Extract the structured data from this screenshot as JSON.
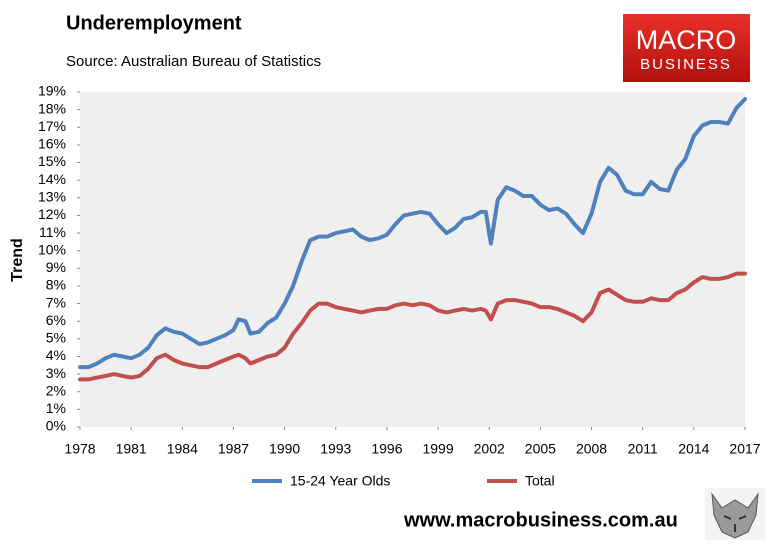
{
  "chart_data": {
    "type": "line",
    "title": "Underemployment",
    "subtitle": "Source: Australian Bureau of Statistics",
    "y_label": "Trend",
    "logo": {
      "top": "MACRO",
      "bottom": "BUSINESS"
    },
    "footer": "www.macrobusiness.com.au",
    "x": [
      1978,
      1978.5,
      1979,
      1979.5,
      1980,
      1980.5,
      1981,
      1981.5,
      1982,
      1982.5,
      1983,
      1983.5,
      1984,
      1984.5,
      1985,
      1985.5,
      1986,
      1986.5,
      1987,
      1987.3,
      1987.7,
      1988,
      1988.5,
      1989,
      1989.5,
      1990,
      1990.5,
      1991,
      1991.5,
      1992,
      1992.5,
      1993,
      1993.5,
      1994,
      1994.5,
      1995,
      1995.5,
      1996,
      1996.5,
      1997,
      1997.5,
      1998,
      1998.5,
      1999,
      1999.5,
      2000,
      2000.5,
      2001,
      2001.5,
      2001.8,
      2002.1,
      2002.5,
      2003,
      2003.5,
      2004,
      2004.5,
      2005,
      2005.5,
      2006,
      2006.5,
      2007,
      2007.5,
      2008,
      2008.5,
      2009,
      2009.5,
      2010,
      2010.5,
      2011,
      2011.5,
      2012,
      2012.5,
      2013,
      2013.5,
      2014,
      2014.5,
      2015,
      2015.5,
      2016,
      2016.5,
      2017
    ],
    "series": [
      {
        "name": "15-24 Year Olds",
        "color": "#4f81bd",
        "values": [
          3.4,
          3.4,
          3.6,
          3.9,
          4.1,
          4.0,
          3.9,
          4.1,
          4.5,
          5.2,
          5.6,
          5.4,
          5.3,
          5.0,
          4.7,
          4.8,
          5.0,
          5.2,
          5.5,
          6.1,
          6.0,
          5.3,
          5.4,
          5.9,
          6.2,
          7.0,
          8.0,
          9.4,
          10.6,
          10.8,
          10.8,
          11.0,
          11.1,
          11.2,
          10.8,
          10.6,
          10.7,
          10.9,
          11.5,
          12.0,
          12.1,
          12.2,
          12.1,
          11.5,
          11.0,
          11.3,
          11.8,
          11.9,
          12.2,
          12.2,
          10.4,
          12.9,
          13.6,
          13.4,
          13.1,
          13.1,
          12.6,
          12.3,
          12.4,
          12.1,
          11.5,
          11.0,
          12.1,
          13.9,
          14.7,
          14.3,
          13.4,
          13.2,
          13.2,
          13.9,
          13.5,
          13.4,
          14.6,
          15.2,
          16.5,
          17.1,
          17.3,
          17.3,
          17.2,
          18.1,
          18.6
        ]
      },
      {
        "name": "Total",
        "color": "#c0504d",
        "values": [
          2.7,
          2.7,
          2.8,
          2.9,
          3.0,
          2.9,
          2.8,
          2.9,
          3.3,
          3.9,
          4.1,
          3.8,
          3.6,
          3.5,
          3.4,
          3.4,
          3.6,
          3.8,
          4.0,
          4.1,
          3.9,
          3.6,
          3.8,
          4.0,
          4.1,
          4.5,
          5.3,
          5.9,
          6.6,
          7.0,
          7.0,
          6.8,
          6.7,
          6.6,
          6.5,
          6.6,
          6.7,
          6.7,
          6.9,
          7.0,
          6.9,
          7.0,
          6.9,
          6.6,
          6.5,
          6.6,
          6.7,
          6.6,
          6.7,
          6.6,
          6.1,
          7.0,
          7.2,
          7.2,
          7.1,
          7.0,
          6.8,
          6.8,
          6.7,
          6.5,
          6.3,
          6.0,
          6.5,
          7.6,
          7.8,
          7.5,
          7.2,
          7.1,
          7.1,
          7.3,
          7.2,
          7.2,
          7.6,
          7.8,
          8.2,
          8.5,
          8.4,
          8.4,
          8.5,
          8.7,
          8.7
        ]
      }
    ],
    "xlim": [
      1978,
      2017
    ],
    "xticks": [
      1978,
      1981,
      1984,
      1987,
      1990,
      1993,
      1996,
      1999,
      2002,
      2005,
      2008,
      2011,
      2014,
      2017
    ],
    "ylim": [
      0,
      19
    ],
    "yticks": [
      {
        "value": 0,
        "label": "0%"
      },
      {
        "value": 1,
        "label": "1%"
      },
      {
        "value": 2,
        "label": "2%"
      },
      {
        "value": 3,
        "label": "3%"
      },
      {
        "value": 4,
        "label": "4%"
      },
      {
        "value": 5,
        "label": "5%"
      },
      {
        "value": 6,
        "label": "6%"
      },
      {
        "value": 7,
        "label": "7%"
      },
      {
        "value": 8,
        "label": "8%"
      },
      {
        "value": 9,
        "label": "9%"
      },
      {
        "value": 10,
        "label": "10%"
      },
      {
        "value": 11,
        "label": "11%"
      },
      {
        "value": 12,
        "label": "12%"
      },
      {
        "value": 13,
        "label": "13%"
      },
      {
        "value": 14,
        "label": "14%"
      },
      {
        "value": 15,
        "label": "15%"
      },
      {
        "value": 16,
        "label": "16%"
      },
      {
        "value": 17,
        "label": "17%"
      },
      {
        "value": 18,
        "label": "18%"
      },
      {
        "value": 19,
        "label": "19%"
      }
    ],
    "grid": false,
    "legend": "bottom"
  }
}
